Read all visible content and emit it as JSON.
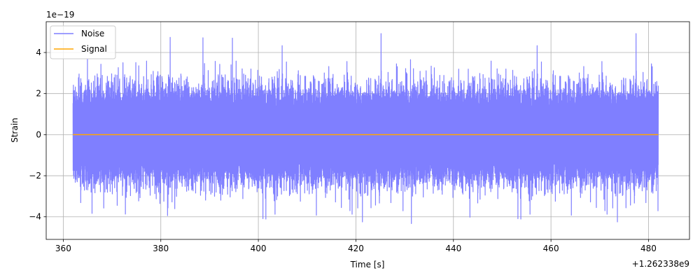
{
  "chart_data": {
    "type": "line",
    "xlabel": "Time [s]",
    "ylabel": "Strain",
    "x_offset_label": "+1.262338e9",
    "y_scale_label": "1e−19",
    "xlim": [
      362,
      482
    ],
    "ylim": [
      -5.1e-19,
      5.5e-19
    ],
    "x_ticks": [
      {
        "value": 360,
        "label": "360"
      },
      {
        "value": 380,
        "label": "380"
      },
      {
        "value": 400,
        "label": "400"
      },
      {
        "value": 420,
        "label": "420"
      },
      {
        "value": 440,
        "label": "440"
      },
      {
        "value": 460,
        "label": "460"
      },
      {
        "value": 480,
        "label": "480"
      }
    ],
    "y_ticks": [
      {
        "value": -4e-19,
        "label": "−4"
      },
      {
        "value": -2e-19,
        "label": "−2"
      },
      {
        "value": 0,
        "label": "0"
      },
      {
        "value": 2e-19,
        "label": "2"
      },
      {
        "value": 4e-19,
        "label": "4"
      }
    ],
    "grid": true,
    "legend": "top-left",
    "series": [
      {
        "name": "Noise",
        "color": "#7f7fff",
        "x_range": [
          362,
          482
        ],
        "amplitude_range": [
          -4.5e-19,
          5e-19
        ]
      },
      {
        "name": "Signal",
        "color": "#ffa500",
        "x": [
          362,
          482
        ],
        "y": [
          0,
          0
        ]
      }
    ]
  }
}
